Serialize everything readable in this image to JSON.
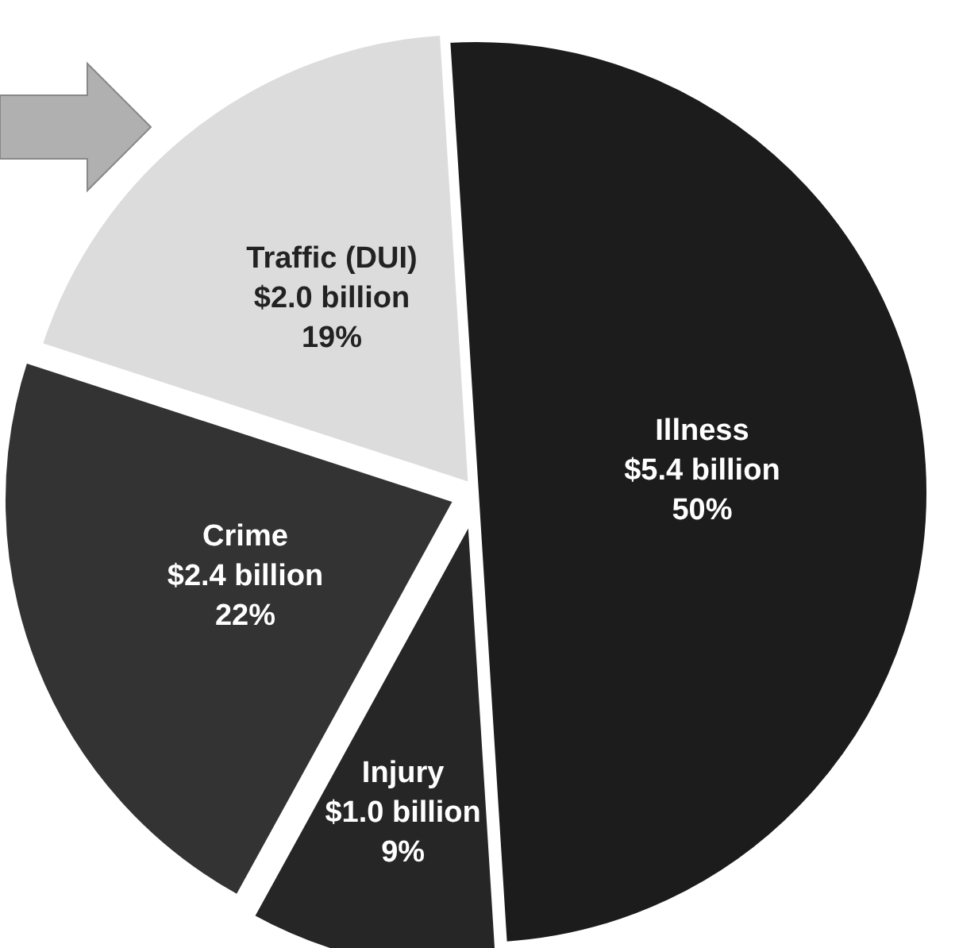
{
  "chart_data": {
    "type": "pie",
    "categories": [
      "Illness",
      "Injury",
      "Crime",
      "Traffic (DUI)"
    ],
    "values": [
      50,
      9,
      22,
      19
    ],
    "colors": [
      "#1c1c1c",
      "#262626",
      "#333333",
      "#dcdcdc"
    ],
    "value_labels": [
      "50%",
      "9%",
      "22%",
      "19%"
    ],
    "annotations": [
      "$5.4 billion",
      "$1.0 billion",
      "$2.4 billion",
      "$2.0 billion"
    ]
  }
}
